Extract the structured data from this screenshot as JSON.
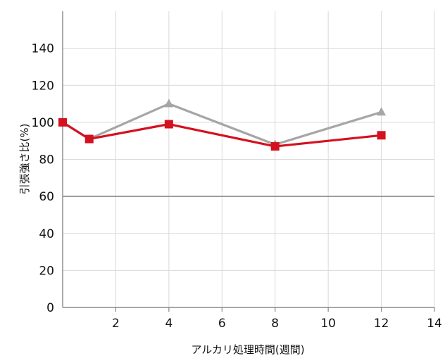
{
  "chart_data": {
    "type": "line",
    "title": "",
    "xlabel": "アルカリ処理時間(週間)",
    "ylabel": "引張強さ比(%)",
    "xlim": [
      0,
      14
    ],
    "ylim": [
      0,
      160
    ],
    "x_ticks": [
      2,
      4,
      6,
      8,
      10,
      12,
      14
    ],
    "y_ticks": [
      0,
      20,
      40,
      60,
      80,
      100,
      120,
      140
    ],
    "grid": true,
    "legend": "none",
    "series": [
      {
        "marker": "square",
        "color": "#d5101f",
        "x": [
          0,
          1,
          4,
          8,
          12
        ],
        "y": [
          100,
          91,
          99,
          87,
          93
        ]
      },
      {
        "marker": "triangle",
        "color": "#a6a6a6",
        "x": [
          0,
          1,
          4,
          8,
          12
        ],
        "y": [
          100,
          91,
          110,
          88,
          105.5
        ]
      }
    ],
    "reference_line": {
      "y": 60,
      "color": "#888888"
    }
  }
}
